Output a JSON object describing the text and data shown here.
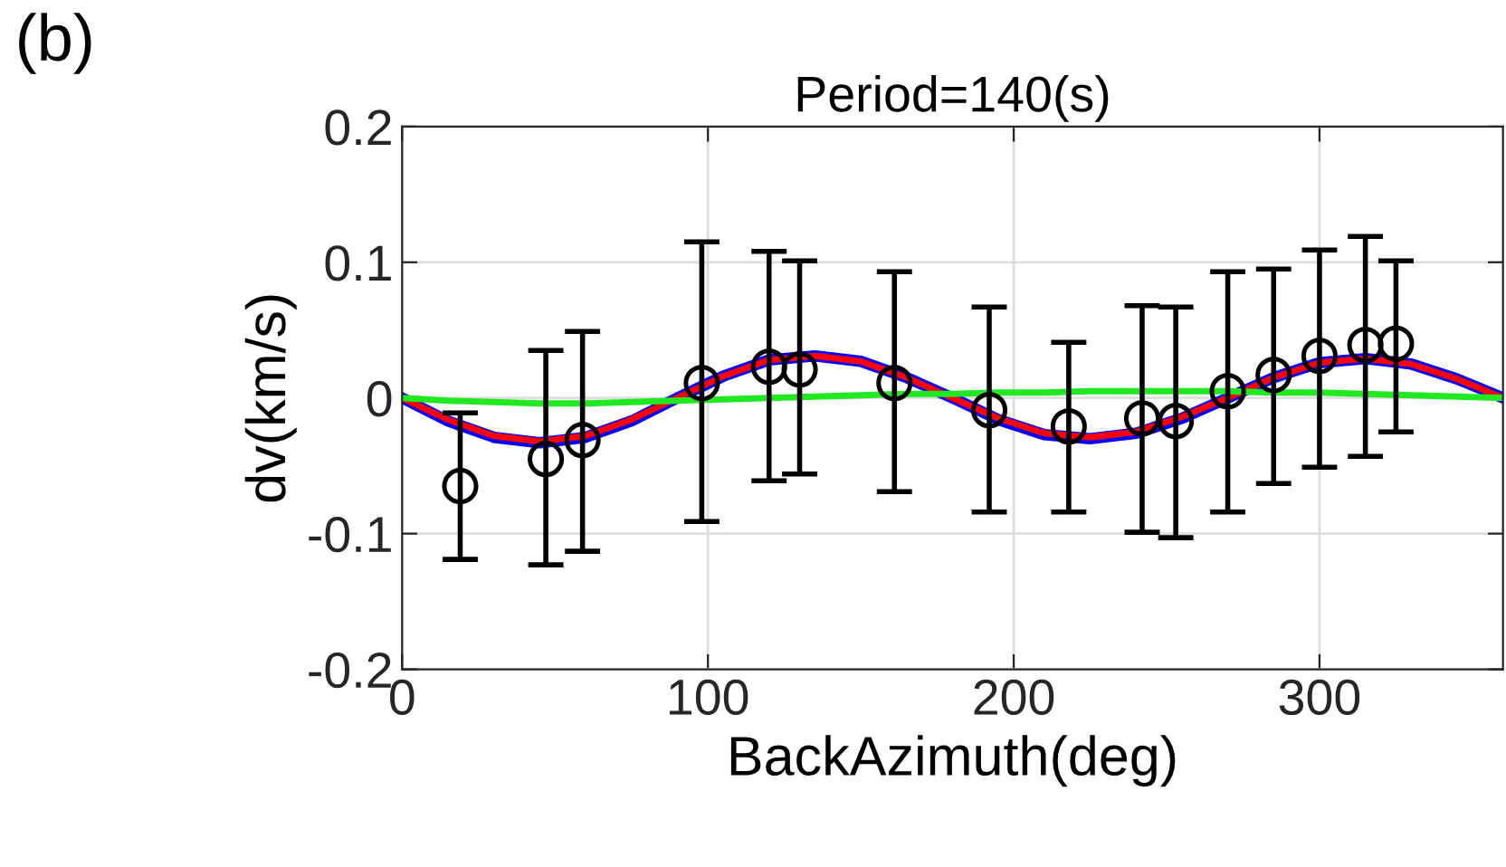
{
  "chart_data": {
    "type": "scatter",
    "title": "Period=140(s)",
    "xlabel": "BackAzimuth(deg)",
    "ylabel": "dv(km/s)",
    "annotations": [
      "(b)"
    ],
    "xlim": [
      0,
      360
    ],
    "xticks": [
      0,
      100,
      200,
      300
    ],
    "ylim": [
      -0.2,
      0.2
    ],
    "yticks": [
      -0.2,
      -0.1,
      0,
      0.1,
      0.2
    ],
    "grid": true,
    "series": [
      {
        "type": "line",
        "color": "#0000ff",
        "x": [
          0,
          15,
          30,
          45,
          60,
          75,
          90,
          105,
          120,
          135,
          150,
          165,
          180,
          195,
          210,
          225,
          240,
          255,
          270,
          285,
          300,
          315,
          330,
          345,
          360
        ],
        "values": [
          0,
          -0.017,
          -0.029,
          -0.033,
          -0.029,
          -0.017,
          0,
          0.016,
          0.028,
          0.031,
          0.027,
          0.015,
          0,
          -0.016,
          -0.027,
          -0.03,
          -0.026,
          -0.015,
          0,
          0.015,
          0.026,
          0.029,
          0.025,
          0.014,
          0
        ]
      },
      {
        "type": "line",
        "color": "#ff0000",
        "x": [
          0,
          15,
          30,
          45,
          60,
          75,
          90,
          105,
          120,
          135,
          150,
          165,
          180,
          195,
          210,
          225,
          240,
          255,
          270,
          285,
          300,
          315,
          330,
          345,
          360
        ],
        "values": [
          0,
          -0.016,
          -0.028,
          -0.032,
          -0.028,
          -0.016,
          0,
          0.016,
          0.028,
          0.031,
          0.027,
          0.015,
          0,
          -0.015,
          -0.026,
          -0.029,
          -0.025,
          -0.014,
          0,
          0.015,
          0.026,
          0.029,
          0.025,
          0.014,
          0
        ]
      },
      {
        "type": "line",
        "color": "#22e822",
        "x": [
          0,
          15,
          30,
          45,
          60,
          75,
          90,
          105,
          120,
          135,
          150,
          165,
          180,
          195,
          210,
          225,
          240,
          255,
          270,
          285,
          300,
          315,
          330,
          345,
          360
        ],
        "values": [
          0,
          -0.002,
          -0.003,
          -0.004,
          -0.004,
          -0.003,
          -0.002,
          -0.001,
          0,
          0.001,
          0.002,
          0.003,
          0.003,
          0.004,
          0.004,
          0.005,
          0.005,
          0.005,
          0.005,
          0.004,
          0.004,
          0.003,
          0.002,
          0.001,
          0
        ]
      },
      {
        "color": "#000000",
        "marker": "circle",
        "x": [
          19,
          47,
          59,
          98,
          120,
          130,
          161,
          192,
          218,
          242,
          253,
          270,
          285,
          300,
          315,
          325
        ],
        "values": [
          -0.065,
          -0.045,
          -0.031,
          0.011,
          0.023,
          0.021,
          0.011,
          -0.009,
          -0.021,
          -0.015,
          -0.017,
          0.005,
          0.017,
          0.031,
          0.039,
          0.04
        ],
        "errors": [
          [
            -0.119,
            -0.011
          ],
          [
            -0.123,
            0.035
          ],
          [
            -0.113,
            0.049
          ],
          [
            -0.091,
            0.115
          ],
          [
            -0.061,
            0.108
          ],
          [
            -0.056,
            0.101
          ],
          [
            -0.069,
            0.093
          ],
          [
            -0.084,
            0.067
          ],
          [
            -0.084,
            0.041
          ],
          [
            -0.099,
            0.068
          ],
          [
            -0.103,
            0.067
          ],
          [
            -0.084,
            0.093
          ],
          [
            -0.063,
            0.095
          ],
          [
            -0.051,
            0.109
          ],
          [
            -0.043,
            0.119
          ],
          [
            -0.025,
            0.101
          ]
        ]
      }
    ]
  }
}
